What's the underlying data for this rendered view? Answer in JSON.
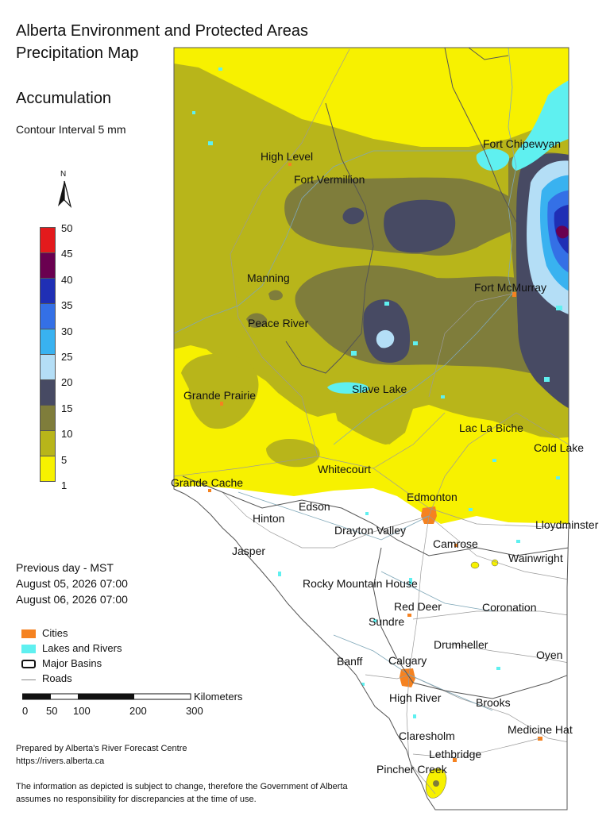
{
  "header": {
    "title_line1": "Alberta Environment and Protected Areas",
    "title_line2": "Precipitation Map",
    "subtitle": "Accumulation",
    "contour_note": "Contour Interval 5 mm"
  },
  "north_arrow": {
    "label": "N"
  },
  "color_scale": {
    "labels": [
      "50",
      "45",
      "40",
      "35",
      "30",
      "25",
      "20",
      "15",
      "10",
      "5",
      "1"
    ],
    "colors": [
      "#e31a1c",
      "#6a0050",
      "#1f2fb5",
      "#3470e6",
      "#39b2f0",
      "#b4def6",
      "#474a63",
      "#7f7d3b",
      "#b8b51a",
      "#f7f100"
    ]
  },
  "period": {
    "line1": "Previous day - MST",
    "line2": "August 05, 2026 07:00",
    "line3": "August 06, 2026 07:00"
  },
  "legend": {
    "cities": "Cities",
    "lakes": "Lakes and Rivers",
    "basins": "Major Basins",
    "roads": "Roads",
    "city_color": "#f58220",
    "lake_color": "#5ff0f0"
  },
  "scalebar": {
    "unit": "Kilometers",
    "ticks": [
      "0",
      "50",
      "100",
      "200",
      "300"
    ]
  },
  "footer": {
    "credit": "Prepared by Alberta's River Forecast Centre",
    "url": "https://rivers.alberta.ca",
    "disclaimer": "The information as depicted is subject to change, therefore the Government of Alberta assumes no responsibility for discrepancies at the time of use."
  },
  "map": {
    "cities": [
      {
        "name": "High Level"
      },
      {
        "name": "Fort Vermillion"
      },
      {
        "name": "Fort Chipewyan"
      },
      {
        "name": "Manning"
      },
      {
        "name": "Fort McMurray"
      },
      {
        "name": "Peace River"
      },
      {
        "name": "Slave Lake"
      },
      {
        "name": "Grande Prairie"
      },
      {
        "name": "Lac La Biche"
      },
      {
        "name": "Cold Lake"
      },
      {
        "name": "Whitecourt"
      },
      {
        "name": "Grande Cache"
      },
      {
        "name": "Edmonton"
      },
      {
        "name": "Edson"
      },
      {
        "name": "Hinton"
      },
      {
        "name": "Drayton Valley"
      },
      {
        "name": "Lloydminster"
      },
      {
        "name": "Jasper"
      },
      {
        "name": "Camrose"
      },
      {
        "name": "Wainwright"
      },
      {
        "name": "Rocky Mountain House"
      },
      {
        "name": "Red Deer"
      },
      {
        "name": "Coronation"
      },
      {
        "name": "Sundre"
      },
      {
        "name": "Drumheller"
      },
      {
        "name": "Oyen"
      },
      {
        "name": "Banff"
      },
      {
        "name": "Calgary"
      },
      {
        "name": "High River"
      },
      {
        "name": "Brooks"
      },
      {
        "name": "Claresholm"
      },
      {
        "name": "Medicine Hat"
      },
      {
        "name": "Lethbridge"
      },
      {
        "name": "Pincher Creek"
      }
    ]
  }
}
